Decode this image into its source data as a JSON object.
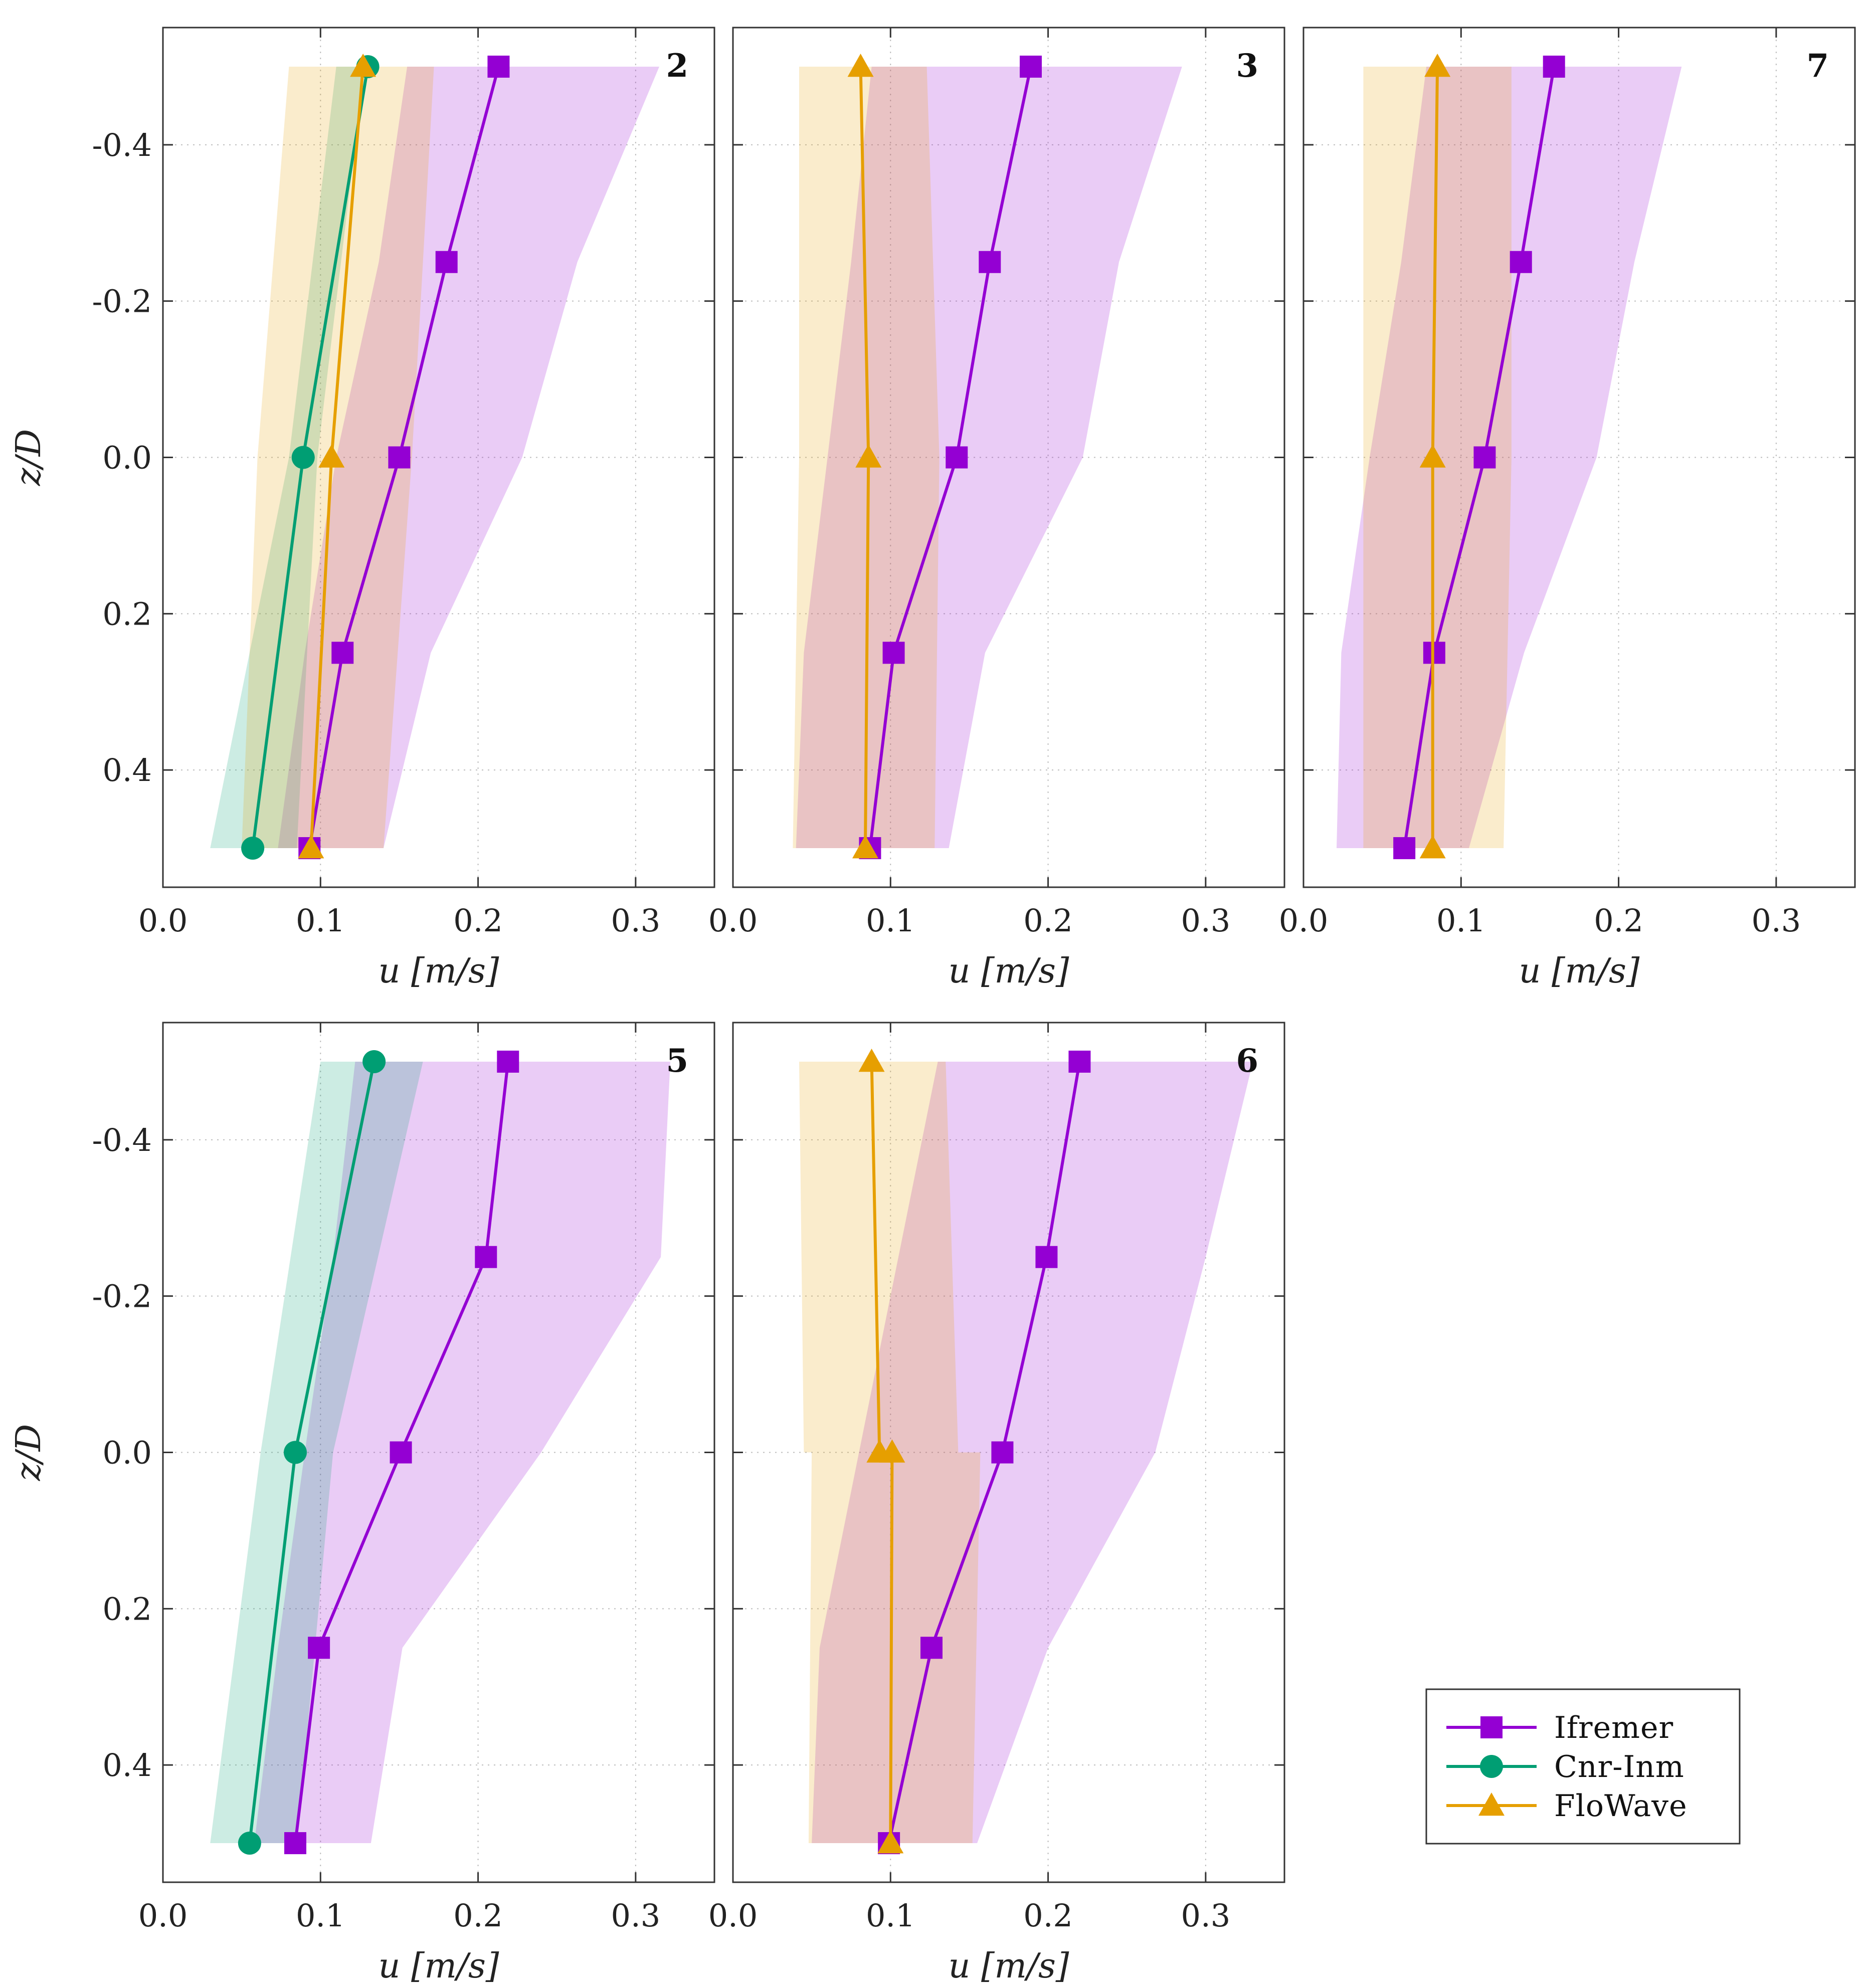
{
  "chart_data": [
    {
      "type": "line",
      "panel_label": "2",
      "xlabel": "u [m/s]",
      "ylabel": "z/D",
      "xlim": [
        0.0,
        0.35
      ],
      "ylim": [
        -0.55,
        0.55
      ],
      "y_inverted": true,
      "xticks": [
        "0.0",
        "0.1",
        "0.2",
        "0.3"
      ],
      "yticks": [
        "-0.4",
        "-0.2",
        "0.0",
        "0.2",
        "0.4"
      ],
      "grid": true,
      "series": [
        {
          "key": "ifremer",
          "marker": "square",
          "color": "#9400d3",
          "points": [
            [
              0.213,
              -0.5
            ],
            [
              0.18,
              -0.25
            ],
            [
              0.15,
              0.0
            ],
            [
              0.114,
              0.25
            ],
            [
              0.093,
              0.5
            ]
          ],
          "band": {
            "lower": [
              0.155,
              0.137,
              0.11,
              0.09,
              0.073
            ],
            "upper": [
              0.315,
              0.263,
              0.228,
              0.17,
              0.14
            ]
          }
        },
        {
          "key": "cnr",
          "marker": "circle",
          "color": "#009e73",
          "points": [
            [
              0.13,
              -0.5
            ],
            [
              0.089,
              0.0
            ],
            [
              0.057,
              0.5
            ]
          ],
          "band": {
            "lower": [
              0.11,
              0.08,
              0.03
            ],
            "upper": [
              0.128,
              0.098,
              0.085
            ]
          }
        },
        {
          "key": "flowave",
          "marker": "triangle",
          "color": "#e69f00",
          "points": [
            [
              0.127,
              -0.5
            ],
            [
              0.107,
              0.0
            ],
            [
              0.094,
              0.5
            ]
          ],
          "band": {
            "lower": [
              0.08,
              0.06,
              0.05
            ],
            "upper": [
              0.172,
              0.158,
              0.14
            ]
          }
        }
      ]
    },
    {
      "type": "line",
      "panel_label": "3",
      "xlabel": "u [m/s]",
      "ylabel": "",
      "xlim": [
        0.0,
        0.35
      ],
      "ylim": [
        -0.55,
        0.55
      ],
      "y_inverted": true,
      "xticks": [
        "0.0",
        "0.1",
        "0.2",
        "0.3"
      ],
      "yticks": [],
      "grid": true,
      "series": [
        {
          "key": "ifremer",
          "marker": "square",
          "color": "#9400d3",
          "points": [
            [
              0.189,
              -0.5
            ],
            [
              0.163,
              -0.25
            ],
            [
              0.142,
              0.0
            ],
            [
              0.102,
              0.25
            ],
            [
              0.087,
              0.5
            ]
          ],
          "band": {
            "lower": [
              0.088,
              0.075,
              0.06,
              0.045,
              0.04
            ],
            "upper": [
              0.285,
              0.245,
              0.222,
              0.16,
              0.137
            ]
          }
        },
        {
          "key": "flowave",
          "marker": "triangle",
          "color": "#e69f00",
          "points": [
            [
              0.081,
              -0.5
            ],
            [
              0.086,
              0.0
            ],
            [
              0.084,
              0.5
            ]
          ],
          "band": {
            "lower": [
              0.042,
              0.042,
              0.038
            ],
            "upper": [
              0.123,
              0.131,
              0.128
            ]
          }
        }
      ]
    },
    {
      "type": "line",
      "panel_label": "7",
      "xlabel": "u [m/s]",
      "ylabel": "",
      "xlim": [
        0.0,
        0.35
      ],
      "ylim": [
        -0.55,
        0.55
      ],
      "y_inverted": true,
      "xticks": [
        "0.0",
        "0.1",
        "0.2",
        "0.3"
      ],
      "yticks": [],
      "grid": true,
      "series": [
        {
          "key": "ifremer",
          "marker": "square",
          "color": "#9400d3",
          "points": [
            [
              0.159,
              -0.5
            ],
            [
              0.138,
              -0.25
            ],
            [
              0.115,
              0.0
            ],
            [
              0.083,
              0.25
            ],
            [
              0.064,
              0.5
            ]
          ],
          "band": {
            "lower": [
              0.078,
              0.062,
              0.042,
              0.024,
              0.021
            ],
            "upper": [
              0.24,
              0.21,
              0.186,
              0.14,
              0.105
            ]
          }
        },
        {
          "key": "flowave",
          "marker": "triangle",
          "color": "#e69f00",
          "points": [
            [
              0.085,
              -0.5
            ],
            [
              0.082,
              0.0
            ],
            [
              0.082,
              0.5
            ]
          ],
          "band": {
            "lower": [
              0.038,
              0.038,
              0.038
            ],
            "upper": [
              0.132,
              0.132,
              0.127
            ]
          }
        }
      ]
    },
    {
      "type": "line",
      "panel_label": "5",
      "xlabel": "u [m/s]",
      "ylabel": "z/D",
      "xlim": [
        0.0,
        0.35
      ],
      "ylim": [
        -0.55,
        0.55
      ],
      "y_inverted": true,
      "xticks": [
        "0.0",
        "0.1",
        "0.2",
        "0.3"
      ],
      "yticks": [
        "-0.4",
        "-0.2",
        "0.0",
        "0.2",
        "0.4"
      ],
      "grid": true,
      "series": [
        {
          "key": "ifremer",
          "marker": "square",
          "color": "#9400d3",
          "points": [
            [
              0.219,
              -0.5
            ],
            [
              0.205,
              -0.25
            ],
            [
              0.151,
              0.0
            ],
            [
              0.099,
              0.25
            ],
            [
              0.084,
              0.5
            ]
          ],
          "band": {
            "lower": [
              0.122,
              0.108,
              0.09,
              0.073,
              0.058
            ],
            "upper": [
              0.322,
              0.316,
              0.24,
              0.152,
              0.132
            ]
          }
        },
        {
          "key": "cnr",
          "marker": "circle",
          "color": "#009e73",
          "points": [
            [
              0.134,
              -0.5
            ],
            [
              0.084,
              0.0
            ],
            [
              0.055,
              0.5
            ]
          ],
          "band": {
            "lower": [
              0.1,
              0.062,
              0.03
            ],
            "upper": [
              0.165,
              0.108,
              0.085
            ]
          }
        }
      ]
    },
    {
      "type": "line",
      "panel_label": "6",
      "xlabel": "u [m/s]",
      "ylabel": "",
      "xlim": [
        0.0,
        0.35
      ],
      "ylim": [
        -0.55,
        0.55
      ],
      "y_inverted": true,
      "xticks": [
        "0.0",
        "0.1",
        "0.2",
        "0.3"
      ],
      "yticks": [],
      "grid": true,
      "series": [
        {
          "key": "ifremer",
          "marker": "square",
          "color": "#9400d3",
          "points": [
            [
              0.22,
              -0.5
            ],
            [
              0.199,
              -0.25
            ],
            [
              0.171,
              0.0
            ],
            [
              0.126,
              0.25
            ],
            [
              0.099,
              0.5
            ]
          ],
          "band": {
            "lower": [
              0.13,
              0.105,
              0.08,
              0.055,
              0.05
            ],
            "upper": [
              0.33,
              0.3,
              0.268,
              0.2,
              0.155
            ]
          }
        },
        {
          "key": "flowave",
          "marker": "triangle",
          "color": "#e69f00",
          "points": [
            [
              0.088,
              -0.5
            ],
            [
              0.093,
              0.0
            ],
            [
              0.101,
              0.0
            ],
            [
              0.1,
              0.5
            ]
          ],
          "band": {
            "lower": [
              0.042,
              0.045,
              0.05,
              0.048
            ],
            "upper": [
              0.135,
              0.143,
              0.157,
              0.152
            ]
          }
        }
      ]
    }
  ],
  "legend": {
    "placement": "lower-right",
    "entries": [
      {
        "key": "ifremer",
        "label": "Ifremer",
        "marker": "square",
        "color": "#9400d3"
      },
      {
        "key": "cnr",
        "label": "Cnr-Inm",
        "marker": "circle",
        "color": "#009e73"
      },
      {
        "key": "flowave",
        "label": "FloWave",
        "marker": "triangle",
        "color": "#e69f00"
      }
    ]
  }
}
